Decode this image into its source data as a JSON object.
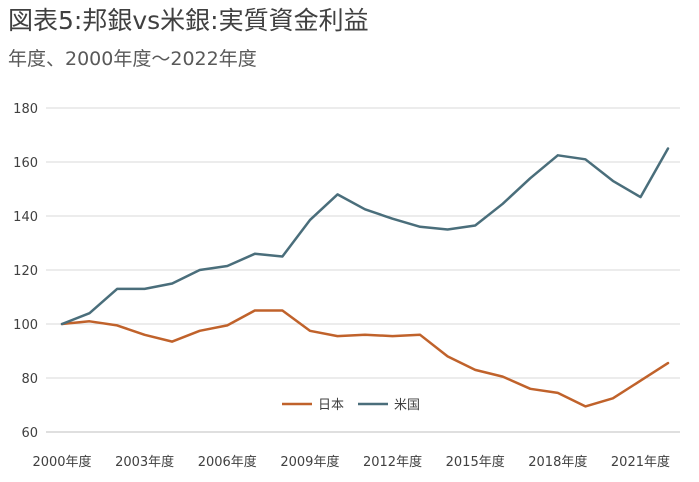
{
  "chart_data": {
    "type": "line",
    "title": "図表5:邦銀vs米銀:実質資金利益",
    "subtitle": "年度、2000年度～2022年度",
    "xlabel": "",
    "ylabel": "",
    "x": [
      "2000",
      "2001",
      "2002",
      "2003",
      "2004",
      "2005",
      "2006",
      "2007",
      "2008",
      "2009",
      "2010",
      "2011",
      "2012",
      "2013",
      "2014",
      "2015",
      "2016",
      "2017",
      "2018",
      "2019",
      "2020",
      "2021",
      "2022"
    ],
    "x_tick_labels": [
      "2000年度",
      "2003年度",
      "2006年度",
      "2009年度",
      "2012年度",
      "2015年度",
      "2018年度",
      "2021年度"
    ],
    "ylim": [
      60,
      180
    ],
    "y_ticks": [
      "60",
      "80",
      "100",
      "120",
      "140",
      "160",
      "180"
    ],
    "grid": "horizontal",
    "legend_position": "bottom-center",
    "series": [
      {
        "name": "日本",
        "color": "#C0622B",
        "values": [
          100,
          101,
          99.5,
          96,
          93.5,
          97.5,
          99.5,
          105,
          105,
          97.5,
          95.5,
          96,
          95.5,
          96,
          88,
          83,
          80.5,
          76,
          74.5,
          69.5,
          72.5,
          79,
          85.5
        ]
      },
      {
        "name": "米国",
        "color": "#4A6E7B",
        "values": [
          100,
          104,
          113,
          113,
          115,
          120,
          121.5,
          126,
          125,
          138.5,
          148,
          142.5,
          139,
          136,
          135,
          136.5,
          144.5,
          154,
          162.5,
          161,
          153,
          147,
          165
        ]
      }
    ]
  }
}
